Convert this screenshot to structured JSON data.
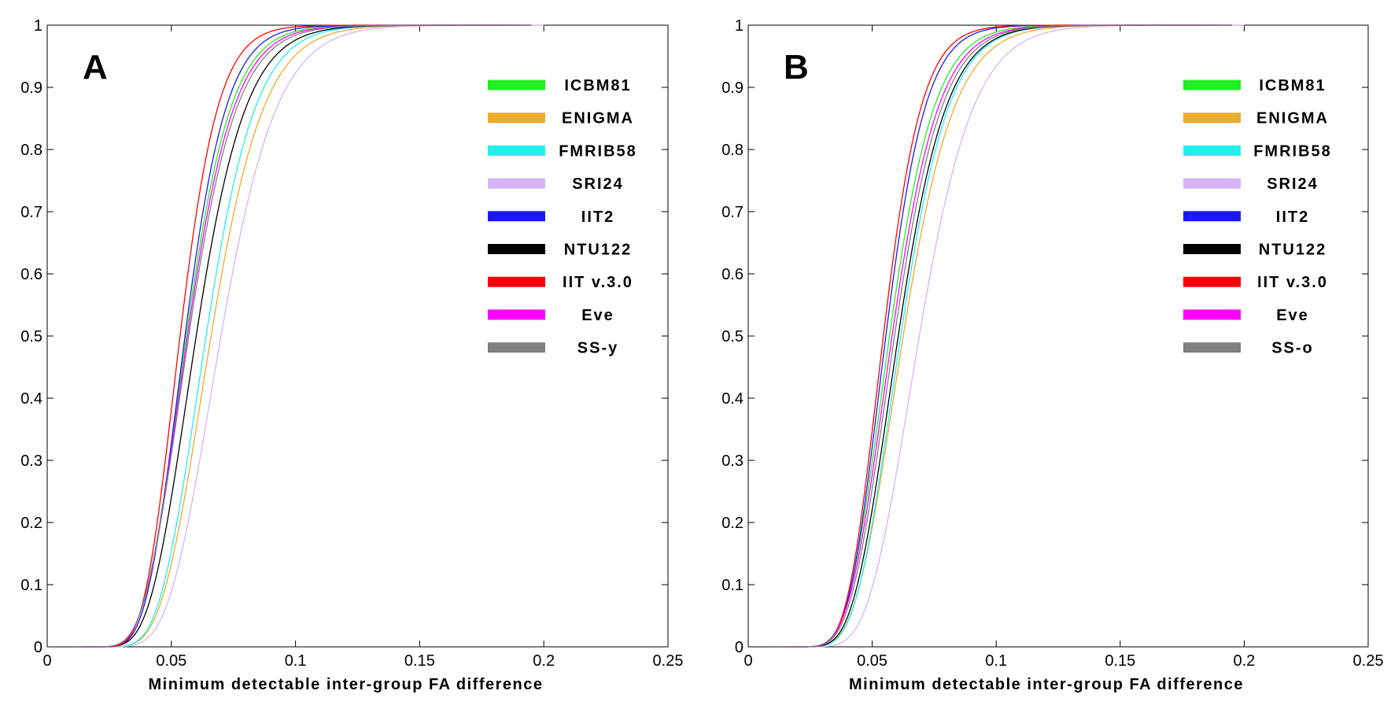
{
  "chart_data": [
    {
      "type": "line",
      "panel": "A",
      "xlabel": "Minimum detectable inter-group FA difference",
      "ylabel": "",
      "xlim": [
        0,
        0.25
      ],
      "ylim": [
        0,
        1
      ],
      "x_ticks": [
        "0",
        "0.05",
        "0.1",
        "0.15",
        "0.2",
        "0.25"
      ],
      "y_ticks": [
        "0",
        "0.1",
        "0.2",
        "0.3",
        "0.4",
        "0.5",
        "0.6",
        "0.7",
        "0.8",
        "0.9",
        "1"
      ],
      "legend_position": "top-right",
      "series": [
        {
          "name": "ICBM81",
          "color": "#22ee22",
          "median": 0.056,
          "scale": 0.014,
          "min": 0.015,
          "max": 0.195
        },
        {
          "name": "ENIGMA",
          "color": "#eaaa2a",
          "median": 0.066,
          "scale": 0.0165,
          "min": 0.018,
          "max": 0.2
        },
        {
          "name": "FMRIB58",
          "color": "#22eeee",
          "median": 0.064,
          "scale": 0.0155,
          "min": 0.017,
          "max": 0.195
        },
        {
          "name": "SRI24",
          "color": "#d6b4f5",
          "median": 0.07,
          "scale": 0.0175,
          "min": 0.018,
          "max": 0.2
        },
        {
          "name": "IIT2",
          "color": "#1a1af0",
          "median": 0.0555,
          "scale": 0.013,
          "min": 0.015,
          "max": 0.19
        },
        {
          "name": "NTU122",
          "color": "#000000",
          "median": 0.06,
          "scale": 0.0155,
          "min": 0.016,
          "max": 0.195
        },
        {
          "name": "IIT v.3.0",
          "color": "#ff0000",
          "median": 0.0535,
          "scale": 0.012,
          "min": 0.015,
          "max": 0.185
        },
        {
          "name": "Eve",
          "color": "#ff00ff",
          "median": 0.0565,
          "scale": 0.0145,
          "min": 0.015,
          "max": 0.195
        },
        {
          "name": "SS-y",
          "color": "#808080",
          "median": 0.057,
          "scale": 0.015,
          "min": 0.015,
          "max": 0.195
        }
      ]
    },
    {
      "type": "line",
      "panel": "B",
      "xlabel": "Minimum detectable inter-group FA difference",
      "ylabel": "",
      "xlim": [
        0,
        0.25
      ],
      "ylim": [
        0,
        1
      ],
      "x_ticks": [
        "0",
        "0.05",
        "0.1",
        "0.15",
        "0.2",
        "0.25"
      ],
      "y_ticks": [
        "0",
        "0.1",
        "0.2",
        "0.3",
        "0.4",
        "0.5",
        "0.6",
        "0.7",
        "0.8",
        "0.9",
        "1"
      ],
      "legend_position": "top-right",
      "series": [
        {
          "name": "ICBM81",
          "color": "#22ee22",
          "median": 0.057,
          "scale": 0.014,
          "min": 0.015,
          "max": 0.195
        },
        {
          "name": "ENIGMA",
          "color": "#eaaa2a",
          "median": 0.0625,
          "scale": 0.016,
          "min": 0.017,
          "max": 0.2
        },
        {
          "name": "FMRIB58",
          "color": "#22eeee",
          "median": 0.0615,
          "scale": 0.015,
          "min": 0.017,
          "max": 0.195
        },
        {
          "name": "SRI24",
          "color": "#d6b4f5",
          "median": 0.069,
          "scale": 0.017,
          "min": 0.018,
          "max": 0.2
        },
        {
          "name": "IIT2",
          "color": "#1a1af0",
          "median": 0.0555,
          "scale": 0.0125,
          "min": 0.015,
          "max": 0.19
        },
        {
          "name": "NTU122",
          "color": "#000000",
          "median": 0.0605,
          "scale": 0.015,
          "min": 0.016,
          "max": 0.195
        },
        {
          "name": "IIT v.3.0",
          "color": "#ff0000",
          "median": 0.0545,
          "scale": 0.012,
          "min": 0.015,
          "max": 0.185
        },
        {
          "name": "Eve",
          "color": "#ff00ff",
          "median": 0.058,
          "scale": 0.0145,
          "min": 0.015,
          "max": 0.195
        },
        {
          "name": "SS-o",
          "color": "#808080",
          "median": 0.059,
          "scale": 0.0148,
          "min": 0.015,
          "max": 0.195
        }
      ]
    }
  ]
}
